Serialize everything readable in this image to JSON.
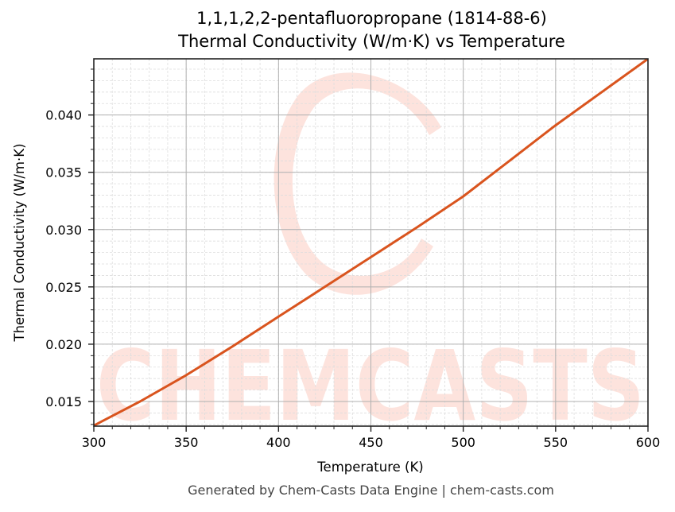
{
  "chart": {
    "title_line1": "1,1,1,2,2-pentafluoropropane (1814-88-6)",
    "title_line2": "Thermal Conductivity (W/m·K) vs Temperature",
    "xlabel": "Temperature (K)",
    "ylabel": "Thermal Conductivity (W/m·K)",
    "footer": "Generated by Chem-Casts Data Engine | chem-casts.com",
    "watermark": "CHEMCASTS",
    "line_color": "#d9541e",
    "watermark_color": "#fde3dd",
    "xticks": [
      "300",
      "350",
      "400",
      "450",
      "500",
      "550",
      "600"
    ],
    "yticks": [
      "0.015",
      "0.020",
      "0.025",
      "0.030",
      "0.035",
      "0.040"
    ]
  },
  "chart_data": {
    "type": "line",
    "title": "1,1,1,2,2-pentafluoropropane (1814-88-6) Thermal Conductivity (W/m·K) vs Temperature",
    "xlabel": "Temperature (K)",
    "ylabel": "Thermal Conductivity (W/m·K)",
    "xlim": [
      300,
      600
    ],
    "ylim": [
      0.01285,
      0.0449
    ],
    "xticks": [
      300,
      350,
      400,
      450,
      500,
      550,
      600
    ],
    "yticks": [
      0.015,
      0.02,
      0.025,
      0.03,
      0.035,
      0.04
    ],
    "grid": {
      "major": true,
      "minor": true
    },
    "legend": null,
    "series": [
      {
        "name": "Thermal Conductivity",
        "color": "#d9541e",
        "x": [
          300,
          325,
          350,
          375,
          400,
          425,
          450,
          475,
          500,
          525,
          550,
          575,
          600
        ],
        "y": [
          0.0129,
          0.015,
          0.0173,
          0.0198,
          0.0224,
          0.025,
          0.0276,
          0.0302,
          0.0329,
          0.036,
          0.0391,
          0.042,
          0.0449
        ]
      }
    ],
    "footer": "Generated by Chem-Casts Data Engine | chem-casts.com"
  }
}
